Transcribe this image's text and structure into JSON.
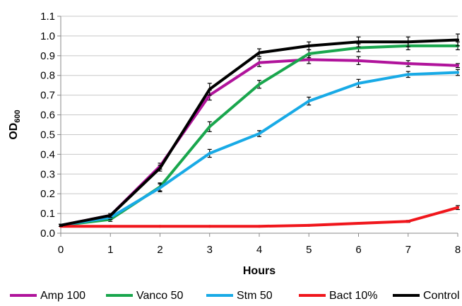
{
  "chart_data": {
    "type": "line",
    "xlabel": "Hours",
    "ylabel_main": "OD",
    "ylabel_sub": "600",
    "xlim": [
      0,
      8
    ],
    "ylim": [
      0.0,
      1.1
    ],
    "x_ticks": [
      "0",
      "1",
      "2",
      "3",
      "4",
      "5",
      "6",
      "7",
      "8"
    ],
    "y_ticks": [
      "0.0",
      "0.1",
      "0.2",
      "0.3",
      "0.4",
      "0.5",
      "0.6",
      "0.7",
      "0.8",
      "0.9",
      "1.0",
      "1.1"
    ],
    "grid": "horizontal",
    "legend_position": "bottom",
    "x": [
      0,
      1,
      2,
      3,
      4,
      5,
      6,
      7,
      8
    ],
    "series": [
      {
        "name": "Amp 100",
        "color": "#B0139B",
        "values": [
          0.04,
          0.09,
          0.34,
          0.7,
          0.865,
          0.88,
          0.875,
          0.86,
          0.85
        ],
        "errors": [
          0.005,
          0.01,
          0.015,
          0.025,
          0.02,
          0.02,
          0.02,
          0.015,
          0.01
        ]
      },
      {
        "name": "Vanco 50",
        "color": "#19A64D",
        "values": [
          0.04,
          0.07,
          0.235,
          0.54,
          0.755,
          0.91,
          0.94,
          0.95,
          0.95
        ],
        "errors": [
          0.005,
          0.01,
          0.02,
          0.025,
          0.02,
          0.02,
          0.02,
          0.02,
          0.02
        ]
      },
      {
        "name": "Stm 50",
        "color": "#18AAE6",
        "values": [
          0.04,
          0.08,
          0.23,
          0.405,
          0.505,
          0.67,
          0.76,
          0.805,
          0.815
        ],
        "errors": [
          0.005,
          0.01,
          0.02,
          0.02,
          0.015,
          0.02,
          0.02,
          0.015,
          0.015
        ]
      },
      {
        "name": "Bact 10%",
        "color": "#F0161C",
        "values": [
          0.035,
          0.035,
          0.035,
          0.035,
          0.035,
          0.04,
          0.05,
          0.06,
          0.13
        ],
        "errors": [
          0,
          0,
          0,
          0,
          0,
          0,
          0,
          0.005,
          0.01
        ]
      },
      {
        "name": "Control",
        "color": "#000000",
        "values": [
          0.04,
          0.09,
          0.33,
          0.73,
          0.915,
          0.95,
          0.97,
          0.97,
          0.98
        ],
        "errors": [
          0.005,
          0.01,
          0.015,
          0.03,
          0.02,
          0.02,
          0.025,
          0.025,
          0.03
        ]
      }
    ]
  }
}
